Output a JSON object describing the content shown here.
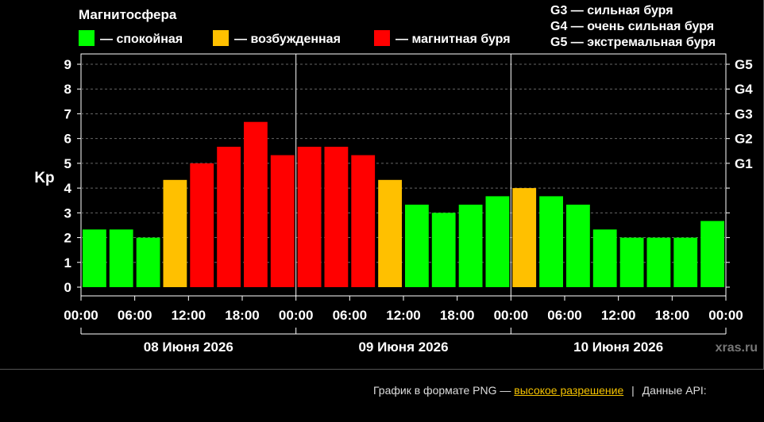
{
  "legend": {
    "title": "Магнитосфера",
    "items": [
      {
        "label": "— спокойная",
        "color": "#00ff00"
      },
      {
        "label": "— возбужденная",
        "color": "#ffc000"
      },
      {
        "label": "— магнитная буря",
        "color": "#ff0000"
      }
    ],
    "g_scale": [
      "G3 — сильная буря",
      "G4 — очень сильная буря",
      "G5 — экстремальная буря"
    ]
  },
  "watermark": "xras.ru",
  "footer": {
    "prefix": "График в формате PNG —",
    "link_label": "высокое разрешение",
    "separator": "|",
    "api_label": "Данные API:"
  },
  "chart_data": {
    "type": "bar",
    "title": "",
    "ylabel": "Kp",
    "ylim": [
      0,
      9
    ],
    "yticks": [
      "0",
      "1",
      "2",
      "3",
      "4",
      "5",
      "6",
      "7",
      "8",
      "9"
    ],
    "g_levels": [
      {
        "label": "G1",
        "kp": 5
      },
      {
        "label": "G2",
        "kp": 6
      },
      {
        "label": "G3",
        "kp": 7
      },
      {
        "label": "G4",
        "kp": 8
      },
      {
        "label": "G5",
        "kp": 9
      }
    ],
    "xtick_labels": [
      "00:00",
      "06:00",
      "12:00",
      "18:00",
      "00:00",
      "06:00",
      "12:00",
      "18:00",
      "00:00",
      "06:00",
      "12:00",
      "18:00",
      "00:00"
    ],
    "days": [
      "08 Июня 2026",
      "09 Июня 2026",
      "10 Июня 2026"
    ],
    "values": [
      2.33,
      2.33,
      2.0,
      4.33,
      5.0,
      5.67,
      6.67,
      5.33,
      5.67,
      5.67,
      5.33,
      4.33,
      3.33,
      3.0,
      3.33,
      3.67,
      4.0,
      3.67,
      3.33,
      2.33,
      2.0,
      2.0,
      2.0,
      2.67
    ],
    "colors": {
      "quiet": "#00ff00",
      "active": "#ffc000",
      "storm": "#ff0000"
    },
    "grid": true
  }
}
